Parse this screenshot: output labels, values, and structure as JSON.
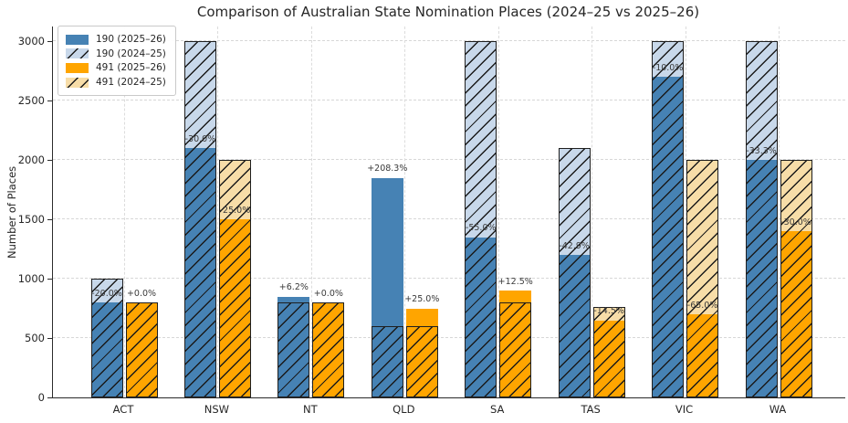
{
  "chart_data": {
    "type": "bar",
    "title": "Comparison of Australian State Nomination Places (2024–25 vs 2025–26)",
    "ylabel": "Number of Places",
    "xlabel": "",
    "categories": [
      "ACT",
      "NSW",
      "NT",
      "QLD",
      "SA",
      "TAS",
      "VIC",
      "WA"
    ],
    "series": [
      {
        "id": "190-2025-26",
        "name": "190 (2025–26)",
        "color": "#4682B4",
        "hatch": false,
        "values": [
          800,
          2100,
          850,
          1850,
          1350,
          1200,
          2700,
          2000
        ]
      },
      {
        "id": "190-2024-25",
        "name": "190 (2024–25)",
        "color": "#C8D8EA",
        "hatch": true,
        "values": [
          1000,
          3000,
          800,
          600,
          3000,
          2100,
          3000,
          3000
        ]
      },
      {
        "id": "491-2025-26",
        "name": "491 (2025–26)",
        "color": "#FFA500",
        "hatch": false,
        "values": [
          800,
          1500,
          800,
          750,
          900,
          650,
          700,
          1400
        ]
      },
      {
        "id": "491-2024-25",
        "name": "491 (2024–25)",
        "color": "#F7DDA8",
        "hatch": true,
        "values": [
          800,
          2000,
          800,
          600,
          800,
          760,
          2000,
          2000
        ]
      }
    ],
    "annotations": {
      "190": [
        "-20.0%",
        "-30.0%",
        "+6.2%",
        "+208.3%",
        "-55.0%",
        "-42.9%",
        "-10.0%",
        "-33.3%"
      ],
      "491": [
        "+0.0%",
        "-25.0%",
        "+0.0%",
        "+25.0%",
        "+12.5%",
        "-14.5%",
        "-65.0%",
        "-30.0%"
      ]
    },
    "yticks": [
      0,
      500,
      1000,
      1500,
      2000,
      2500,
      3000
    ],
    "ylim": [
      0,
      3100
    ],
    "grid": true,
    "hatch_style": "//",
    "legend_position": "upper left",
    "colors": {
      "hatch_line": "#1a1a1a",
      "grid": "#d7d7d7",
      "spine": "#2b2b2b",
      "text": "#262626",
      "annotation": "#3a3a3a",
      "background": "#ffffff"
    }
  }
}
